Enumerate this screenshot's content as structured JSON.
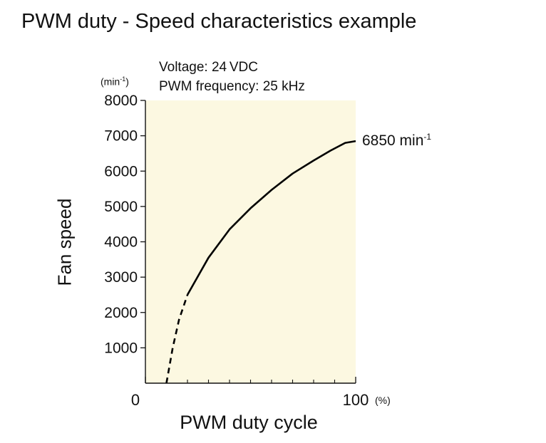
{
  "title": "PWM duty - Speed characteristics example",
  "notes": {
    "voltage": "Voltage: 24 VDC",
    "frequency": "PWM frequency: 25 kHz"
  },
  "chart_data": {
    "type": "line",
    "xlabel": "PWM duty cycle",
    "ylabel": "Fan speed",
    "x_unit": "(%)",
    "y_unit_base": "(min",
    "y_unit_exp": "-1",
    "y_unit_close": ")",
    "xlim": [
      0,
      100
    ],
    "ylim": [
      0,
      8000
    ],
    "x_tick_labels": [
      "0",
      "100"
    ],
    "y_ticks": [
      1000,
      2000,
      3000,
      4000,
      5000,
      6000,
      7000,
      8000
    ],
    "plot_background": "#fcf8e1",
    "series": [
      {
        "dashed_segment": [
          [
            10,
            0
          ],
          [
            13,
            1000
          ],
          [
            16,
            1800
          ],
          [
            20,
            2500
          ]
        ],
        "solid_segment": [
          [
            20,
            2500
          ],
          [
            30,
            3550
          ],
          [
            40,
            4350
          ],
          [
            50,
            4950
          ],
          [
            60,
            5470
          ],
          [
            70,
            5930
          ],
          [
            80,
            6300
          ],
          [
            88,
            6580
          ],
          [
            95,
            6800
          ],
          [
            100,
            6850
          ]
        ]
      }
    ],
    "annotation": {
      "text": "6850 min",
      "exp": "-1",
      "x": 100,
      "y": 6850
    }
  }
}
